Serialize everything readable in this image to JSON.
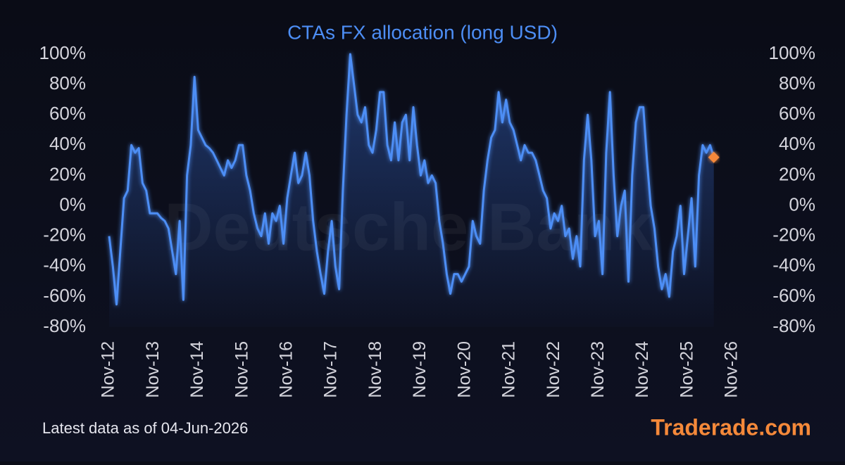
{
  "chart_data": {
    "type": "line",
    "title": "CTAs FX allocation (long USD)",
    "watermark": "Deutsche Bank",
    "annotation": "Latest data as of 04-Jun-2026",
    "source": "Traderade.com",
    "x": [
      "2012-11",
      "2012-12",
      "2013-01",
      "2013-02",
      "2013-03",
      "2013-04",
      "2013-05",
      "2013-06",
      "2013-07",
      "2013-08",
      "2013-09",
      "2013-10",
      "2013-11",
      "2013-12",
      "2014-01",
      "2014-02",
      "2014-03",
      "2014-04",
      "2014-05",
      "2014-06",
      "2014-07",
      "2014-08",
      "2014-09",
      "2014-10",
      "2014-11",
      "2014-12",
      "2015-01",
      "2015-02",
      "2015-03",
      "2015-04",
      "2015-05",
      "2015-06",
      "2015-07",
      "2015-08",
      "2015-09",
      "2015-10",
      "2015-11",
      "2015-12",
      "2016-01",
      "2016-02",
      "2016-03",
      "2016-04",
      "2016-05",
      "2016-06",
      "2016-07",
      "2016-08",
      "2016-09",
      "2016-10",
      "2016-11",
      "2016-12",
      "2017-01",
      "2017-02",
      "2017-03",
      "2017-04",
      "2017-05",
      "2017-06",
      "2017-07",
      "2017-08",
      "2017-09",
      "2017-10",
      "2017-11",
      "2017-12",
      "2018-01",
      "2018-02",
      "2018-03",
      "2018-04",
      "2018-05",
      "2018-06",
      "2018-07",
      "2018-08",
      "2018-09",
      "2018-10",
      "2018-11",
      "2018-12",
      "2019-01",
      "2019-02",
      "2019-03",
      "2019-04",
      "2019-05",
      "2019-06",
      "2019-07",
      "2019-08",
      "2019-09",
      "2019-10",
      "2019-11",
      "2019-12",
      "2020-01",
      "2020-02",
      "2020-03",
      "2020-04",
      "2020-05",
      "2020-06",
      "2020-07",
      "2020-08",
      "2020-09",
      "2020-10",
      "2020-11",
      "2020-12",
      "2021-01",
      "2021-02",
      "2021-03",
      "2021-04",
      "2021-05",
      "2021-06",
      "2021-07",
      "2021-08",
      "2021-09",
      "2021-10",
      "2021-11",
      "2021-12",
      "2022-01",
      "2022-02",
      "2022-03",
      "2022-04",
      "2022-05",
      "2022-06",
      "2022-07",
      "2022-08",
      "2022-09",
      "2022-10",
      "2022-11",
      "2022-12",
      "2023-01",
      "2023-02",
      "2023-03",
      "2023-04",
      "2023-05",
      "2023-06",
      "2023-07",
      "2023-08",
      "2023-09",
      "2023-10",
      "2023-11",
      "2023-12",
      "2024-01",
      "2024-02",
      "2024-03",
      "2024-04",
      "2024-05",
      "2024-06",
      "2024-07",
      "2024-08",
      "2024-09",
      "2024-10",
      "2024-11",
      "2024-12",
      "2025-01",
      "2025-02",
      "2025-03",
      "2025-04",
      "2025-05",
      "2025-06",
      "2025-07",
      "2025-08",
      "2025-09",
      "2025-10",
      "2025-11",
      "2025-12",
      "2026-01",
      "2026-02",
      "2026-03",
      "2026-04",
      "2026-05",
      "2026-06"
    ],
    "series": [
      {
        "name": "CTAs FX allocation",
        "color": "#4d8ef5",
        "values": [
          -20,
          -40,
          -65,
          -30,
          5,
          10,
          40,
          35,
          38,
          15,
          10,
          -5,
          -5,
          -5,
          -8,
          -10,
          -15,
          -30,
          -45,
          -10,
          -62,
          20,
          40,
          85,
          50,
          45,
          40,
          38,
          35,
          30,
          25,
          20,
          30,
          25,
          30,
          40,
          40,
          20,
          10,
          -5,
          -15,
          -20,
          -5,
          -25,
          -5,
          -10,
          0,
          -25,
          5,
          20,
          35,
          15,
          20,
          35,
          20,
          -10,
          -30,
          -45,
          -58,
          -30,
          -10,
          -40,
          -55,
          10,
          60,
          100,
          80,
          60,
          55,
          65,
          40,
          35,
          50,
          75,
          75,
          40,
          30,
          55,
          30,
          55,
          60,
          30,
          65,
          40,
          20,
          30,
          15,
          20,
          15,
          -10,
          -25,
          -45,
          -58,
          -45,
          -45,
          -50,
          -45,
          -40,
          -10,
          -20,
          -25,
          10,
          30,
          45,
          50,
          75,
          55,
          70,
          55,
          50,
          40,
          30,
          40,
          35,
          35,
          30,
          20,
          10,
          5,
          -15,
          -5,
          -10,
          0,
          -20,
          -15,
          -35,
          -20,
          -40,
          30,
          60,
          30,
          -20,
          -10,
          -45,
          35,
          75,
          20,
          -20,
          0,
          10,
          -50,
          20,
          55,
          65,
          65,
          30,
          0,
          -15,
          -40,
          -55,
          -45,
          -60,
          -30,
          -20,
          0,
          -45,
          -20,
          5,
          -40,
          20,
          40,
          35,
          40,
          32
        ]
      }
    ],
    "latest_color": "#f5893a",
    "xticks": [
      {
        "value": "2012-11",
        "label": "Nov-12"
      },
      {
        "value": "2013-11",
        "label": "Nov-13"
      },
      {
        "value": "2014-11",
        "label": "Nov-14"
      },
      {
        "value": "2015-11",
        "label": "Nov-15"
      },
      {
        "value": "2016-11",
        "label": "Nov-16"
      },
      {
        "value": "2017-11",
        "label": "Nov-17"
      },
      {
        "value": "2018-11",
        "label": "Nov-18"
      },
      {
        "value": "2019-11",
        "label": "Nov-19"
      },
      {
        "value": "2020-11",
        "label": "Nov-20"
      },
      {
        "value": "2021-11",
        "label": "Nov-21"
      },
      {
        "value": "2022-11",
        "label": "Nov-22"
      },
      {
        "value": "2023-11",
        "label": "Nov-23"
      },
      {
        "value": "2024-11",
        "label": "Nov-24"
      },
      {
        "value": "2025-11",
        "label": "Nov-25"
      },
      {
        "value": "2026-11",
        "label": "Nov-26"
      }
    ],
    "ylim": [
      -80,
      100
    ],
    "yticks": [
      {
        "value": -80,
        "label": "-80%"
      },
      {
        "value": -60,
        "label": "-60%"
      },
      {
        "value": -40,
        "label": "-40%"
      },
      {
        "value": -20,
        "label": "-20%"
      },
      {
        "value": 0,
        "label": "0%"
      },
      {
        "value": 20,
        "label": "20%"
      },
      {
        "value": 40,
        "label": "40%"
      },
      {
        "value": 60,
        "label": "60%"
      },
      {
        "value": 80,
        "label": "80%"
      },
      {
        "value": 100,
        "label": "100%"
      }
    ],
    "mirror_y_axis": true,
    "grid": false
  }
}
